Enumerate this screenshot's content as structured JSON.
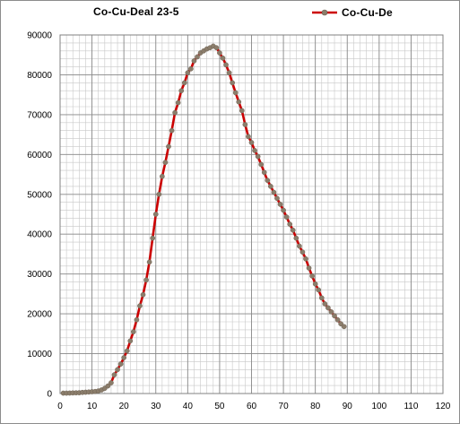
{
  "chart_data": {
    "type": "line",
    "title": "Co-Cu-Deal 23-5",
    "xlabel": "",
    "ylabel": "",
    "xlim": [
      0,
      120
    ],
    "ylim": [
      0,
      90000
    ],
    "x_ticks": [
      "0",
      "10",
      "20",
      "30",
      "40",
      "50",
      "60",
      "70",
      "80",
      "90",
      "100",
      "110",
      "120"
    ],
    "y_ticks": [
      "0",
      "10000",
      "20000",
      "30000",
      "40000",
      "50000",
      "60000",
      "70000",
      "80000",
      "90000"
    ],
    "grid": true,
    "legend_position": "top-right",
    "series": [
      {
        "name": "Co-Cu-De",
        "line_color": "#cc0000",
        "marker_color": "#8b7d6b",
        "points": [
          [
            1,
            100
          ],
          [
            2,
            100
          ],
          [
            3,
            120
          ],
          [
            4,
            150
          ],
          [
            5,
            180
          ],
          [
            6,
            200
          ],
          [
            7,
            280
          ],
          [
            8,
            330
          ],
          [
            9,
            380
          ],
          [
            10,
            450
          ],
          [
            11,
            520
          ],
          [
            12,
            650
          ],
          [
            13,
            900
          ],
          [
            14,
            1300
          ],
          [
            15,
            1900
          ],
          [
            16,
            2700
          ],
          [
            17,
            4700
          ],
          [
            18,
            6000
          ],
          [
            19,
            7400
          ],
          [
            20,
            9000
          ],
          [
            21,
            10700
          ],
          [
            22,
            13200
          ],
          [
            23,
            15500
          ],
          [
            24,
            18500
          ],
          [
            25,
            22000
          ],
          [
            26,
            24800
          ],
          [
            27,
            28500
          ],
          [
            28,
            33000
          ],
          [
            29,
            39000
          ],
          [
            30,
            45000
          ],
          [
            31,
            50000
          ],
          [
            32,
            54500
          ],
          [
            33,
            58000
          ],
          [
            34,
            62000
          ],
          [
            35,
            66000
          ],
          [
            36,
            70500
          ],
          [
            37,
            73000
          ],
          [
            38,
            76000
          ],
          [
            39,
            78000
          ],
          [
            40,
            80500
          ],
          [
            41,
            81500
          ],
          [
            42,
            83500
          ],
          [
            43,
            84500
          ],
          [
            44,
            85500
          ],
          [
            45,
            86000
          ],
          [
            46,
            86500
          ],
          [
            47,
            86800
          ],
          [
            48,
            87200
          ],
          [
            49,
            86800
          ],
          [
            50,
            85500
          ],
          [
            51,
            84200
          ],
          [
            52,
            82500
          ],
          [
            53,
            80500
          ],
          [
            54,
            78000
          ],
          [
            55,
            75500
          ],
          [
            56,
            73200
          ],
          [
            57,
            71000
          ],
          [
            58,
            67500
          ],
          [
            59,
            64500
          ],
          [
            60,
            63000
          ],
          [
            61,
            61000
          ],
          [
            62,
            59500
          ],
          [
            63,
            57500
          ],
          [
            64,
            55500
          ],
          [
            65,
            53500
          ],
          [
            66,
            52000
          ],
          [
            67,
            50500
          ],
          [
            68,
            49000
          ],
          [
            69,
            47500
          ],
          [
            70,
            46000
          ],
          [
            71,
            44300
          ],
          [
            72,
            42500
          ],
          [
            73,
            41000
          ],
          [
            74,
            39000
          ],
          [
            75,
            37000
          ],
          [
            76,
            35500
          ],
          [
            77,
            33800
          ],
          [
            78,
            31500
          ],
          [
            79,
            29500
          ],
          [
            80,
            27500
          ],
          [
            81,
            26000
          ],
          [
            82,
            24000
          ],
          [
            83,
            22500
          ],
          [
            84,
            21500
          ],
          [
            85,
            20500
          ],
          [
            86,
            19500
          ],
          [
            87,
            18500
          ],
          [
            88,
            17500
          ],
          [
            89,
            16800
          ]
        ]
      }
    ]
  }
}
